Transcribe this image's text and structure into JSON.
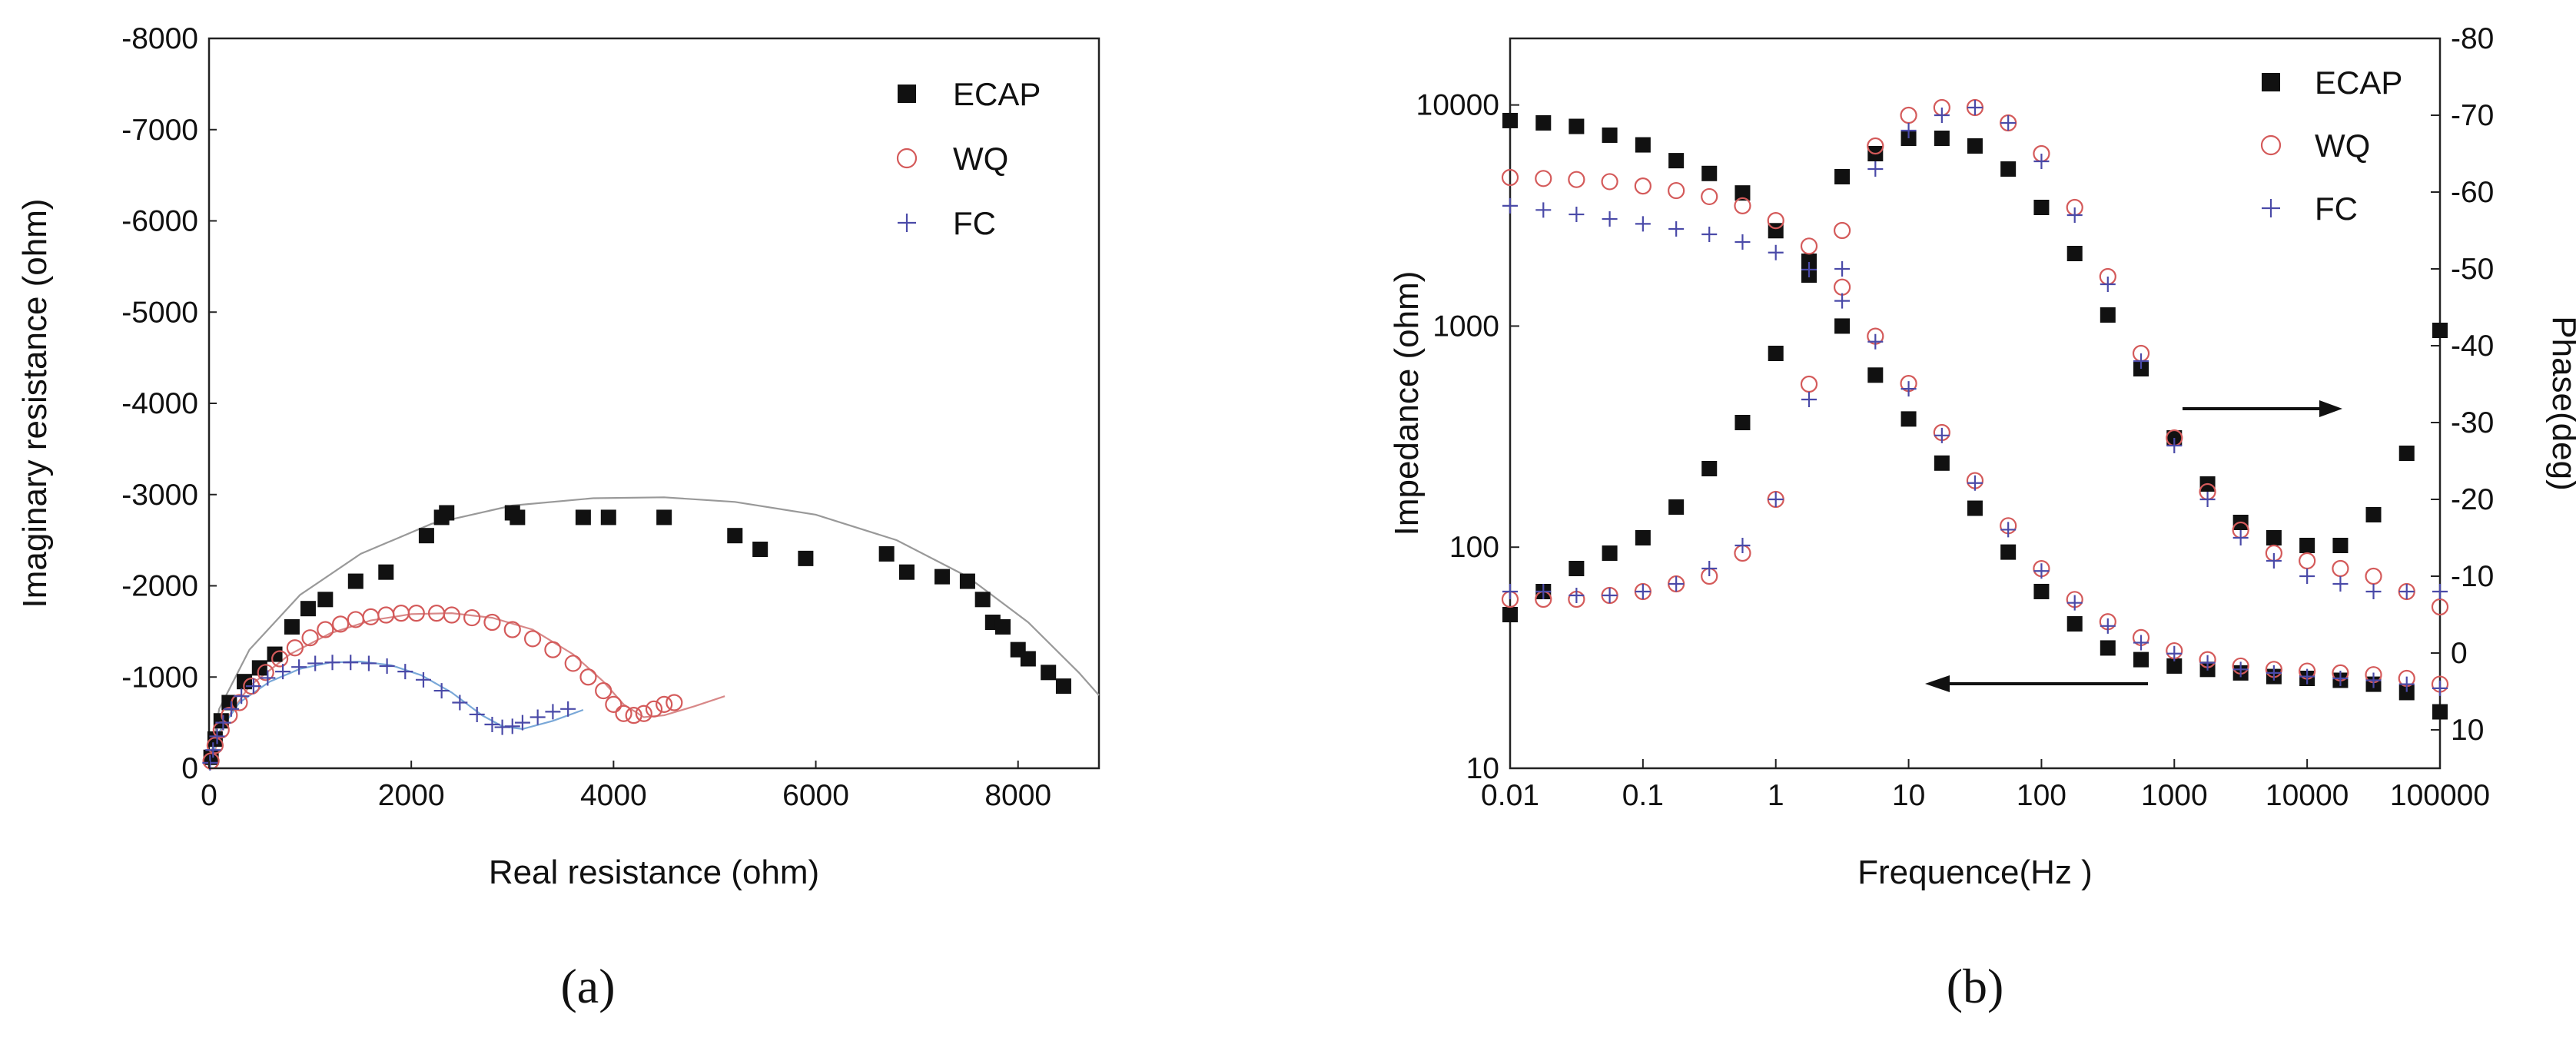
{
  "chart_data": [
    {
      "panel_label": "(a)",
      "type": "scatter",
      "xlabel": "Real resistance (ohm)",
      "ylabel": "Imaginary resistance (ohm)",
      "xlim": [
        0,
        8800
      ],
      "ylim": [
        0,
        -8000
      ],
      "x_ticks": [
        "0",
        "2000",
        "4000",
        "6000",
        "8000"
      ],
      "y_ticks": [
        "0",
        "-1000",
        "-2000",
        "-3000",
        "-4000",
        "-5000",
        "-6000",
        "-7000",
        "-8000"
      ],
      "legend_position": "top-right",
      "grid": false,
      "series": [
        {
          "name": "ECAP",
          "marker": "filled-square",
          "color": "#111111",
          "x": [
            20,
            60,
            120,
            200,
            350,
            500,
            650,
            820,
            980,
            1150,
            1450,
            1750,
            2150,
            2300,
            2350,
            3000,
            3050,
            3700,
            3950,
            4500,
            5200,
            5450,
            5900,
            6700,
            6900,
            7250,
            7500,
            7650,
            7750,
            7850,
            8000,
            8100,
            8300,
            8450
          ],
          "y": [
            -120,
            -320,
            -520,
            -720,
            -950,
            -1100,
            -1250,
            -1550,
            -1750,
            -1850,
            -2050,
            -2150,
            -2550,
            -2750,
            -2800,
            -2800,
            -2750,
            -2750,
            -2750,
            -2750,
            -2550,
            -2400,
            -2300,
            -2350,
            -2150,
            -2100,
            -2050,
            -1850,
            -1600,
            -1550,
            -1300,
            -1200,
            -1050,
            -900
          ]
        },
        {
          "name": "WQ",
          "marker": "open-circle",
          "color": "#d45a5a",
          "x": [
            20,
            60,
            120,
            200,
            300,
            420,
            560,
            700,
            850,
            1000,
            1150,
            1300,
            1450,
            1600,
            1750,
            1900,
            2050,
            2250,
            2400,
            2600,
            2800,
            3000,
            3200,
            3400,
            3600,
            3750,
            3900,
            4000,
            4100,
            4200,
            4300,
            4400,
            4500,
            4600
          ],
          "y": [
            -80,
            -250,
            -420,
            -580,
            -720,
            -900,
            -1050,
            -1200,
            -1320,
            -1430,
            -1520,
            -1580,
            -1630,
            -1660,
            -1680,
            -1700,
            -1700,
            -1700,
            -1680,
            -1650,
            -1600,
            -1520,
            -1420,
            -1300,
            -1150,
            -1000,
            -850,
            -700,
            -600,
            -580,
            -600,
            -650,
            -700,
            -720
          ]
        },
        {
          "name": "FC",
          "marker": "plus",
          "color": "#4a4aa8",
          "x": [
            10,
            40,
            80,
            140,
            220,
            320,
            440,
            580,
            730,
            890,
            1050,
            1220,
            1400,
            1580,
            1760,
            1940,
            2120,
            2300,
            2480,
            2650,
            2800,
            2900,
            3000,
            3100,
            3250,
            3400,
            3550
          ],
          "y": [
            -60,
            -200,
            -350,
            -500,
            -650,
            -790,
            -900,
            -990,
            -1060,
            -1110,
            -1150,
            -1160,
            -1160,
            -1150,
            -1120,
            -1060,
            -970,
            -850,
            -720,
            -590,
            -480,
            -450,
            -460,
            -500,
            -560,
            -620,
            -650
          ]
        }
      ],
      "fit_lines": [
        {
          "color": "#999999",
          "x": [
            0,
            100,
            400,
            900,
            1500,
            2200,
            3000,
            3800,
            4500,
            5200,
            6000,
            6800,
            7500,
            8100,
            8600,
            8800
          ],
          "y": [
            0,
            -650,
            -1300,
            -1900,
            -2350,
            -2680,
            -2880,
            -2960,
            -2970,
            -2920,
            -2780,
            -2500,
            -2100,
            -1600,
            -1050,
            -800
          ]
        },
        {
          "color": "#d88888",
          "x": [
            0,
            150,
            400,
            800,
            1200,
            1600,
            2000,
            2400,
            2800,
            3200,
            3600,
            3900,
            4100,
            4300,
            4500,
            4800,
            5100
          ],
          "y": [
            0,
            -500,
            -900,
            -1250,
            -1480,
            -1620,
            -1690,
            -1700,
            -1650,
            -1520,
            -1250,
            -950,
            -700,
            -560,
            -580,
            -680,
            -790
          ]
        },
        {
          "color": "#7aa8d8",
          "x": [
            0,
            100,
            300,
            600,
            900,
            1200,
            1500,
            1800,
            2100,
            2400,
            2700,
            2900,
            3100,
            3400,
            3700
          ],
          "y": [
            0,
            -400,
            -720,
            -950,
            -1090,
            -1160,
            -1170,
            -1130,
            -1020,
            -830,
            -580,
            -460,
            -430,
            -520,
            -640
          ]
        }
      ]
    },
    {
      "panel_label": "(b)",
      "type": "scatter",
      "xlabel": "Frequence(Hz )",
      "ylabel_left": "Impedance (ohm)",
      "ylabel_right": "Phase(deg)",
      "x_scale": "log",
      "y_left_scale": "log",
      "xlim": [
        0.01,
        100000
      ],
      "ylim_left": [
        10,
        20000
      ],
      "ylim_right": [
        15,
        -80
      ],
      "x_ticks": [
        "0.01",
        "0.1",
        "1",
        "10",
        "100",
        "1000",
        "10000",
        "100000"
      ],
      "y_left_ticks": [
        "10",
        "100",
        "1000",
        "10000"
      ],
      "y_right_ticks": [
        "10",
        "0",
        "-10",
        "-20",
        "-30",
        "-40",
        "-50",
        "-60",
        "-70",
        "-80"
      ],
      "legend_position": "top-right",
      "grid": false,
      "annotations": [
        {
          "type": "arrow",
          "direction": "right",
          "meaning": "phase curves use right axis"
        },
        {
          "type": "arrow",
          "direction": "left",
          "meaning": "impedance curves use left axis"
        }
      ],
      "frequencies_hz": [
        0.01,
        0.0178,
        0.0316,
        0.0562,
        0.1,
        0.178,
        0.316,
        0.562,
        1,
        1.78,
        3.16,
        5.62,
        10,
        17.8,
        31.6,
        56.2,
        100,
        178,
        316,
        562,
        1000,
        1780,
        3160,
        5620,
        10000,
        17800,
        31600,
        56200,
        100000
      ],
      "series": [
        {
          "name": "ECAP",
          "marker": "filled-square",
          "color": "#111111",
          "impedance": [
            8500,
            8300,
            8000,
            7300,
            6600,
            5600,
            4900,
            4000,
            2700,
            1700,
            1000,
            600,
            380,
            240,
            150,
            95,
            63,
            45,
            35,
            31,
            29,
            28,
            27,
            26,
            25.5,
            25,
            24,
            22,
            18
          ],
          "phase": [
            -5,
            -8,
            -11,
            -13,
            -15,
            -19,
            -24,
            -30,
            -39,
            -51,
            -62,
            -65,
            -67,
            -67,
            -66,
            -63,
            -58,
            -52,
            -44,
            -37,
            -28,
            -22,
            -17,
            -15,
            -14,
            -14,
            -18,
            -26,
            -42
          ]
        },
        {
          "name": "WQ",
          "marker": "open-circle",
          "color": "#d45a5a",
          "impedance": [
            4700,
            4650,
            4600,
            4500,
            4300,
            4100,
            3850,
            3500,
            3000,
            2300,
            1500,
            900,
            550,
            330,
            200,
            125,
            80,
            58,
            46,
            39,
            34,
            31,
            29,
            28,
            27.5,
            27,
            26.5,
            25.5,
            24
          ],
          "phase": [
            -7,
            -7,
            -7,
            -7.5,
            -8,
            -9,
            -10,
            -13,
            -20,
            -35,
            -55,
            -66,
            -70,
            -71,
            -71,
            -69,
            -65,
            -58,
            -49,
            -39,
            -28,
            -21,
            -16,
            -13,
            -12,
            -11,
            -10,
            -8,
            -6
          ]
        },
        {
          "name": "FC",
          "marker": "plus",
          "color": "#4a4aa8",
          "impedance": [
            3500,
            3350,
            3200,
            3050,
            2900,
            2750,
            2600,
            2400,
            2150,
            1800,
            1300,
            850,
            520,
            320,
            195,
            120,
            78,
            56,
            44,
            37,
            33,
            30,
            28,
            27,
            26,
            25.5,
            25,
            24,
            23
          ],
          "phase": [
            -8,
            -8,
            -7.5,
            -7.5,
            -8,
            -9,
            -11,
            -14,
            -20,
            -33,
            -50,
            -63,
            -68,
            -70,
            -71,
            -69,
            -64,
            -57,
            -48,
            -38,
            -27,
            -20,
            -15,
            -12,
            -10,
            -9,
            -8,
            -8,
            -8
          ]
        }
      ]
    }
  ]
}
